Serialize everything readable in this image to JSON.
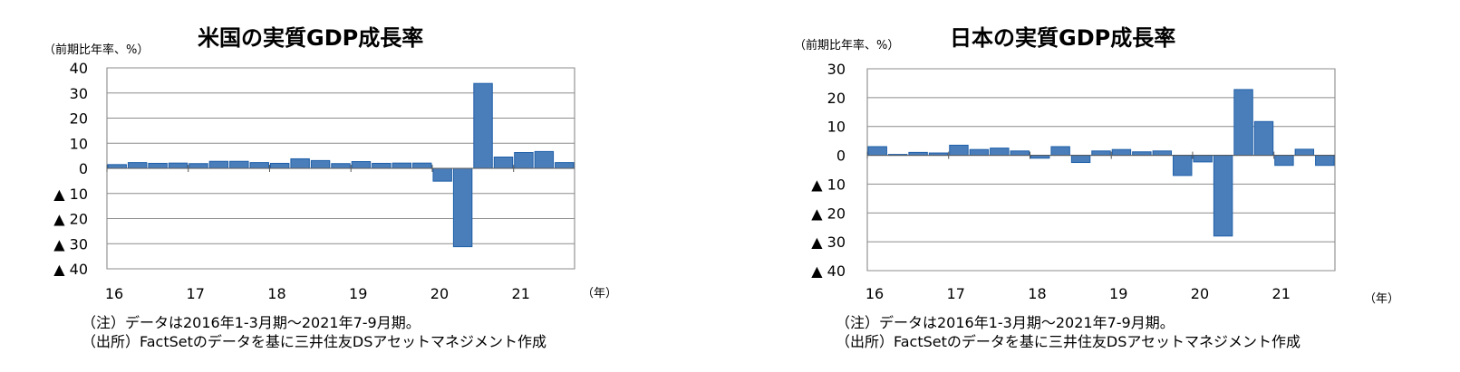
{
  "charts": [
    {
      "title": "米国の実質GDP成長率",
      "unit_label": "（前期比年率、%）",
      "year_unit": "（年）",
      "note": "（注）データは2016年1-3月期～2021年7-9月期。",
      "source": "（出所）FactSetのデータを基に三井住友DSアセットマネジメント作成",
      "bar_color": "#4a7ebb",
      "bar_edge": "#1f5fa8",
      "chart_data": {
        "type": "bar",
        "title": "米国の実質GDP成長率",
        "ylabel": "（前期比年率、%）",
        "xlabel": "（年）",
        "ylim": [
          -40,
          40
        ],
        "yticks": [
          40,
          30,
          20,
          10,
          0,
          -10,
          -20,
          -30,
          -40
        ],
        "ytick_labels": [
          "40",
          "30",
          "20",
          "10",
          "0",
          "▲ 10",
          "▲ 20",
          "▲ 30",
          "▲ 40"
        ],
        "xtick_labels": [
          "16",
          "17",
          "18",
          "19",
          "20",
          "21"
        ],
        "values": [
          1.5,
          2.3,
          2.0,
          2.1,
          1.9,
          2.8,
          2.8,
          2.3,
          2.0,
          3.8,
          3.1,
          1.9,
          2.7,
          2.0,
          2.1,
          2.1,
          -5.1,
          -31.2,
          33.8,
          4.5,
          6.3,
          6.7,
          2.3
        ],
        "grid": true
      }
    },
    {
      "title": "日本の実質GDP成長率",
      "unit_label": "（前期比年率、%）",
      "year_unit": "（年）",
      "note": "（注）データは2016年1-3月期～2021年7-9月期。",
      "source": "（出所）FactSetのデータを基に三井住友DSアセットマネジメント作成",
      "bar_color": "#4a7ebb",
      "bar_edge": "#1f5fa8",
      "chart_data": {
        "type": "bar",
        "title": "日本の実質GDP成長率",
        "ylabel": "（前期比年率、%）",
        "xlabel": "（年）",
        "ylim": [
          -40,
          30
        ],
        "yticks": [
          30,
          20,
          10,
          0,
          -10,
          -20,
          -30,
          -40
        ],
        "ytick_labels": [
          "30",
          "20",
          "10",
          "0",
          "▲ 10",
          "▲ 20",
          "▲ 30",
          "▲ 40"
        ],
        "xtick_labels": [
          "16",
          "17",
          "18",
          "19",
          "20",
          "21"
        ],
        "values": [
          3.0,
          0.3,
          1.0,
          0.8,
          3.5,
          2.0,
          2.5,
          1.5,
          -1.0,
          3.0,
          -2.5,
          1.5,
          2.0,
          1.2,
          1.5,
          -7.0,
          -2.3,
          -28.0,
          22.8,
          11.7,
          -3.5,
          2.1,
          -3.5
        ],
        "grid": true
      }
    }
  ]
}
